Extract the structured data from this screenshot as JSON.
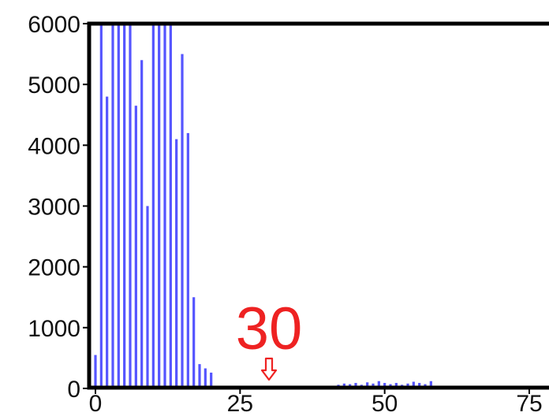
{
  "chart_data": {
    "type": "bar",
    "x_ticks": [
      "0",
      "25",
      "50",
      "75"
    ],
    "y_ticks": [
      "0",
      "1000",
      "2000",
      "3000",
      "4000",
      "5000",
      "6000"
    ],
    "xlim": [
      0,
      78
    ],
    "ylim": [
      0,
      6000
    ],
    "grid": false,
    "bar_color": "#5555ff",
    "x": [
      0,
      1,
      2,
      3,
      4,
      5,
      6,
      7,
      8,
      9,
      10,
      11,
      12,
      13,
      14,
      15,
      16,
      17,
      18,
      19,
      20,
      42,
      43,
      44,
      45,
      46,
      47,
      48,
      49,
      50,
      51,
      52,
      53,
      54,
      55,
      56,
      57,
      58
    ],
    "values": [
      550,
      6000,
      4800,
      6000,
      6000,
      6000,
      6000,
      4650,
      5400,
      3000,
      6000,
      6000,
      6000,
      6000,
      4100,
      5500,
      4200,
      1500,
      400,
      330,
      260,
      60,
      80,
      70,
      90,
      60,
      100,
      80,
      120,
      90,
      70,
      90,
      60,
      80,
      110,
      90,
      70,
      120
    ],
    "annotation": {
      "text": "30",
      "x": 30,
      "color": "#ee2222"
    }
  }
}
